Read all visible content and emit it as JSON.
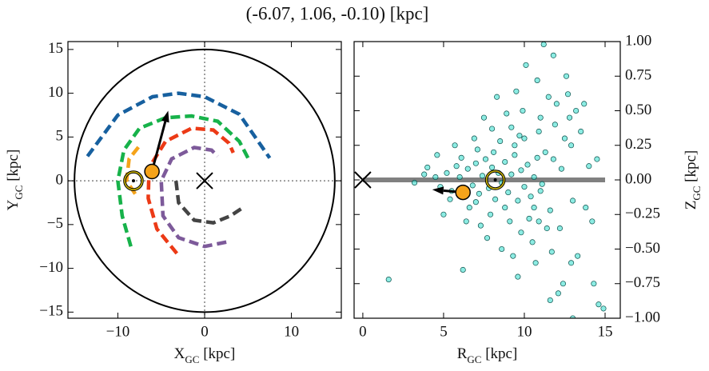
{
  "title": "(-6.07, 1.06, -0.10) [kpc]",
  "chart_data": [
    {
      "type": "line",
      "xlabel": [
        "X",
        "GC",
        " [kpc]"
      ],
      "ylabel": [
        "Y",
        "GC",
        " [kpc]"
      ],
      "xlim": [
        -15.75,
        15.75
      ],
      "ylim": [
        -15.7,
        15.9
      ],
      "xticks": [
        {
          "value": -10,
          "label": "−10"
        },
        0,
        10
      ],
      "yticks": [
        {
          "value": -15,
          "label": "−15"
        },
        {
          "value": -10,
          "label": "−10"
        },
        {
          "value": -5,
          "label": "−5"
        },
        0,
        5,
        10,
        15
      ],
      "circle": {
        "radius": 15,
        "color": "#000000"
      },
      "crosshair": {
        "x": 0,
        "y": 0,
        "color": "#808080"
      },
      "series": [
        {
          "color": "#17609f",
          "x": [
            -13.5,
            -10,
            -6,
            -3,
            0,
            4,
            7.5
          ],
          "values": [
            2.8,
            7.5,
            9.6,
            10,
            9.6,
            7.6,
            2.6
          ]
        },
        {
          "color": "#17b24a",
          "x": [
            -8.5,
            -9.5,
            -10,
            -9.3,
            -7.5,
            -4.5,
            -1.5,
            1.5,
            4,
            5
          ],
          "values": [
            -7.5,
            -4,
            0,
            3.5,
            6,
            7.2,
            7.4,
            6.8,
            4.5,
            2.6
          ]
        },
        {
          "color": "#f5a31a",
          "x": [
            -8,
            -9,
            -8.7,
            -7.5
          ],
          "values": [
            -1.5,
            0,
            2.5,
            4
          ]
        },
        {
          "color": "#ec3a16",
          "x": [
            -3.2,
            -5.5,
            -6.5,
            -6.4,
            -4.5,
            -1.5,
            1,
            2.8,
            3.3
          ],
          "values": [
            -8.3,
            -5.5,
            -2,
            1.5,
            4.5,
            6,
            5.8,
            4.3,
            3.2
          ]
        },
        {
          "color": "#7d5a9a",
          "x": [
            2.5,
            0,
            -3,
            -4.8,
            -5,
            -3.8,
            -1.2,
            0.8,
            1.5
          ],
          "values": [
            -7,
            -7.5,
            -6.5,
            -4,
            0,
            2.5,
            3.8,
            3.5,
            2.8
          ]
        },
        {
          "color": "#444444",
          "x": [
            -3.3,
            -3,
            -1.2,
            1,
            3,
            4.5
          ],
          "values": [
            0,
            -2.5,
            -4.5,
            -4.8,
            -4,
            -3
          ]
        }
      ],
      "markers": [
        {
          "symbol": "x",
          "x": 0,
          "y": 0
        },
        {
          "symbol": "sun",
          "x": -8.2,
          "y": 0
        },
        {
          "symbol": "dot",
          "x": -6.07,
          "y": 1.06,
          "color": "#f5a31a"
        }
      ],
      "arrow": {
        "x": -6.07,
        "y": 1.06,
        "x2": -4.2,
        "y2": 8.0
      }
    },
    {
      "type": "scatter",
      "xlabel": [
        "R",
        "GC",
        " [kpc]"
      ],
      "ylabel": [
        "Z",
        "GC",
        " [kpc]"
      ],
      "xlim": [
        -0.54,
        15.94
      ],
      "ylim": [
        -1,
        1
      ],
      "xticks": [
        0,
        5,
        10,
        15
      ],
      "yticks": [
        {
          "value": -1,
          "label": "−1.00"
        },
        {
          "value": -0.75,
          "label": "−0.75"
        },
        {
          "value": -0.5,
          "label": "−0.50"
        },
        {
          "value": -0.25,
          "label": "−0.25"
        },
        {
          "value": 0,
          "label": "0.00"
        },
        {
          "value": 0.25,
          "label": "0.25"
        },
        {
          "value": 0.5,
          "label": "0.50"
        },
        {
          "value": 0.75,
          "label": "0.75"
        },
        {
          "value": 1,
          "label": "1.00"
        }
      ],
      "color": "#40e0d0",
      "x": [
        5.2,
        5.5,
        5.8,
        6.0,
        6.3,
        6.5,
        6.8,
        7.0,
        7.2,
        7.4,
        7.6,
        7.8,
        8.0,
        8.2,
        8.4,
        8.6,
        8.8,
        9.0,
        9.2,
        9.4,
        9.6,
        9.8,
        10.0,
        10.2,
        10.4,
        10.6,
        10.8,
        11.0,
        4.5,
        4.8,
        3.8,
        3.2,
        4.0,
        6.6,
        7.1,
        7.9,
        8.5,
        9.1,
        9.7,
        10.3,
        10.9,
        11.3,
        11.6,
        11.9,
        12.2,
        12.5,
        12.8,
        13.0,
        12.0,
        11.5,
        10.8,
        11.8,
        11.2,
        12.6,
        13.2,
        13.5,
        12.9,
        13.3,
        11.7,
        10.5,
        12.4,
        14.6,
        14.9,
        14.3,
        13.0,
        12.1,
        11.6,
        14.0,
        14.2,
        14.5,
        9.9,
        9.5,
        8.9,
        10.1,
        8.0,
        7.5,
        9.3,
        8.6,
        7.3,
        6.4,
        5.7,
        5.0,
        4.6,
        1.6,
        6.2,
        9.6,
        10.7,
        11.4,
        12.7,
        13.7,
        11.0,
        10.0,
        6.9,
        8.3,
        9.8,
        7.7,
        8.8,
        10.6,
        9.4,
        12.3,
        13.8,
        11.1,
        6.1,
        5.4,
        8.1,
        7.0,
        12.9,
        10.9,
        11.8,
        9.2
      ],
      "values": [
        0.05,
        -0.08,
        0.1,
        0.02,
        -0.12,
        0.08,
        -0.04,
        0.12,
        -0.1,
        0.03,
        0.15,
        -0.06,
        0.09,
        -0.14,
        0.05,
        -0.02,
        0.13,
        -0.09,
        0.04,
        0.18,
        -0.15,
        0.07,
        -0.05,
        0.11,
        -0.12,
        0.02,
        0.16,
        -0.08,
        0.02,
        -0.05,
        0.04,
        -0.02,
        0.09,
        -0.2,
        0.22,
        -0.25,
        0.28,
        -0.3,
        0.32,
        -0.28,
        0.35,
        0.2,
        -0.22,
        0.4,
        -0.35,
        0.3,
        0.45,
        -0.15,
        0.55,
        0.6,
        0.72,
        0.9,
        0.98,
        0.75,
        0.5,
        0.35,
        -0.6,
        -0.55,
        -0.52,
        -0.45,
        -0.75,
        -0.9,
        -0.93,
        -0.75,
        -1.0,
        -0.82,
        -0.87,
        0.1,
        -0.3,
        0.15,
        0.5,
        0.64,
        0.48,
        0.83,
        0.37,
        0.45,
        -0.55,
        -0.5,
        -0.33,
        -0.3,
        0.25,
        -0.25,
        0.18,
        -0.72,
        -0.65,
        -0.7,
        -0.6,
        -0.35,
        0.62,
        0.55,
        0.45,
        0.3,
        0.3,
        0.6,
        -0.38,
        -0.42,
        -0.2,
        -0.2,
        0.25,
        0.08,
        -0.2,
        -0.03,
        0.16,
        -0.14,
        0.2,
        -0.16,
        0.25,
        -0.3,
        0.15,
        0.38
      ],
      "hline": {
        "y": 0,
        "x1": 0,
        "x2": 15,
        "color": "#808080"
      },
      "markers": [
        {
          "symbol": "x",
          "x": 0,
          "y": 0
        },
        {
          "symbol": "sun",
          "x": 8.2,
          "y": 0
        },
        {
          "symbol": "dot",
          "x": 6.2,
          "y": -0.09,
          "color": "#f5a31a"
        }
      ],
      "arrow": {
        "x": 6.2,
        "y": -0.09,
        "x2": 4.3,
        "y2": -0.07
      }
    }
  ]
}
